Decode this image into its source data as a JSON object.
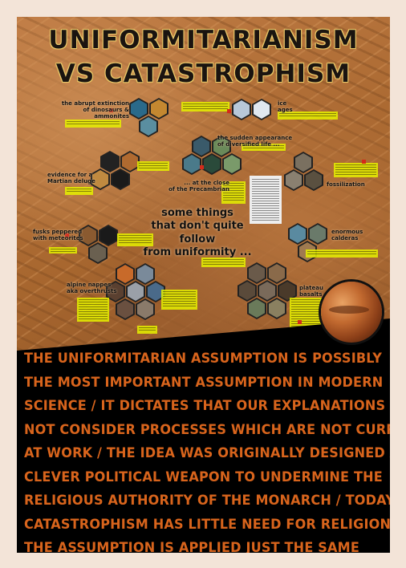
{
  "title": {
    "line1": "UNIFORMITARIANISM",
    "line2": "VS CATASTROPHISM"
  },
  "labels": {
    "extinction": [
      "the abrupt extinction",
      "of dinosaurs & ammonites"
    ],
    "ice_ages": [
      "ice",
      "ages"
    ],
    "diversified_life": [
      "the sudden appearance",
      "of diversified life ..."
    ],
    "martian_deluge": [
      "evidence for a",
      "Martian deluge"
    ],
    "precambrian": [
      "... at the close",
      "of the Precambrian"
    ],
    "fossilization": [
      "fossilization"
    ],
    "center": [
      "some things",
      "that don't quite follow",
      "from uniformity ..."
    ],
    "meteorites": [
      "fusks peppered",
      "with meteorites"
    ],
    "calderas": [
      "enormous",
      "calderas"
    ],
    "nappes": [
      "alpine nappes",
      "aka overthrusts"
    ],
    "basalts": [
      "plateau",
      "basalts"
    ]
  },
  "bottom_text": [
    "THE UNIFORMITARIAN ASSUMPTION IS POSSIBLY",
    "THE MOST IMPORTANT ASSUMPTION IN MODERN",
    "SCIENCE / IT DICTATES THAT OUR EXPLANATIONS NEED",
    "NOT CONSIDER PROCESSES WHICH ARE NOT CURRENTLY",
    "AT WORK / THE IDEA WAS ORIGINALLY DESIGNED AS A",
    "CLEVER POLITICAL WEAPON TO UNDERMINE THE",
    "RELIGIOUS AUTHORITY OF THE MONARCH / TODAY'S",
    "CATASTROPHISM HAS LITTLE NEED FOR RELIGION, YET",
    "THE ASSUMPTION IS APPLIED JUST THE SAME"
  ],
  "colors": {
    "background": "#f3e4d8",
    "accent_text": "#d8641c",
    "note_highlight": "#e6f000",
    "title_outline": "#e8c65c"
  }
}
